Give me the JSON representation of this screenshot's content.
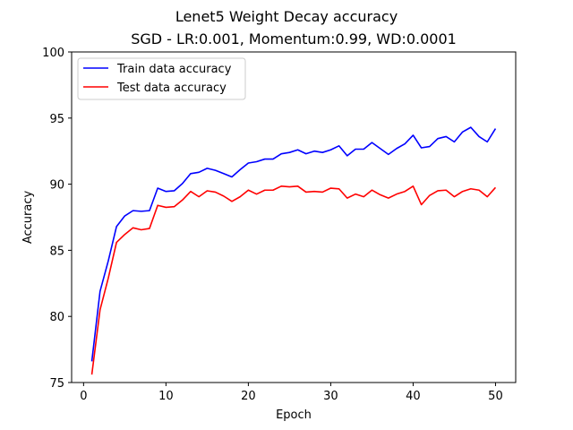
{
  "chart_data": {
    "type": "line",
    "title": "Lenet5 Weight Decay accuracy",
    "subtitle": "SGD -  LR:0.001, Momentum:0.99, WD:0.0001",
    "xlabel": "Epoch",
    "ylabel": "Accuracy",
    "xlim": [
      -1.45,
      52.45
    ],
    "ylim": [
      75,
      100
    ],
    "xticks": [
      0,
      10,
      20,
      30,
      40,
      50
    ],
    "yticks": [
      75,
      80,
      85,
      90,
      95,
      100
    ],
    "grid": false,
    "legend_position": "top-left",
    "x": [
      1,
      2,
      3,
      4,
      5,
      6,
      7,
      8,
      9,
      10,
      11,
      12,
      13,
      14,
      15,
      16,
      17,
      18,
      19,
      20,
      21,
      22,
      23,
      24,
      25,
      26,
      27,
      28,
      29,
      30,
      31,
      32,
      33,
      34,
      35,
      36,
      37,
      38,
      39,
      40,
      41,
      42,
      43,
      44,
      45,
      46,
      47,
      48,
      49,
      50
    ],
    "series": [
      {
        "name": "Train data accuracy",
        "color": "#0000ff",
        "values": [
          76.6,
          81.9,
          84.2,
          86.8,
          87.6,
          88.0,
          87.95,
          88.0,
          89.7,
          89.45,
          89.5,
          90.05,
          90.8,
          90.9,
          91.2,
          91.05,
          90.8,
          90.55,
          91.1,
          91.6,
          91.7,
          91.9,
          91.9,
          92.3,
          92.4,
          92.6,
          92.3,
          92.5,
          92.4,
          92.6,
          92.9,
          92.15,
          92.65,
          92.65,
          93.15,
          92.7,
          92.25,
          92.7,
          93.05,
          93.7,
          92.75,
          92.85,
          93.45,
          93.6,
          93.2,
          93.95,
          94.3,
          93.6,
          93.2,
          94.2
        ]
      },
      {
        "name": "Test data accuracy",
        "color": "#ff0000",
        "values": [
          75.6,
          80.5,
          82.9,
          85.6,
          86.2,
          86.7,
          86.55,
          86.65,
          88.4,
          88.25,
          88.3,
          88.8,
          89.45,
          89.05,
          89.5,
          89.4,
          89.1,
          88.7,
          89.05,
          89.55,
          89.25,
          89.55,
          89.55,
          89.85,
          89.8,
          89.85,
          89.4,
          89.45,
          89.4,
          89.7,
          89.65,
          88.95,
          89.25,
          89.05,
          89.55,
          89.2,
          88.95,
          89.25,
          89.45,
          89.85,
          88.45,
          89.15,
          89.5,
          89.55,
          89.05,
          89.45,
          89.65,
          89.55,
          89.05,
          89.75
        ]
      }
    ]
  }
}
